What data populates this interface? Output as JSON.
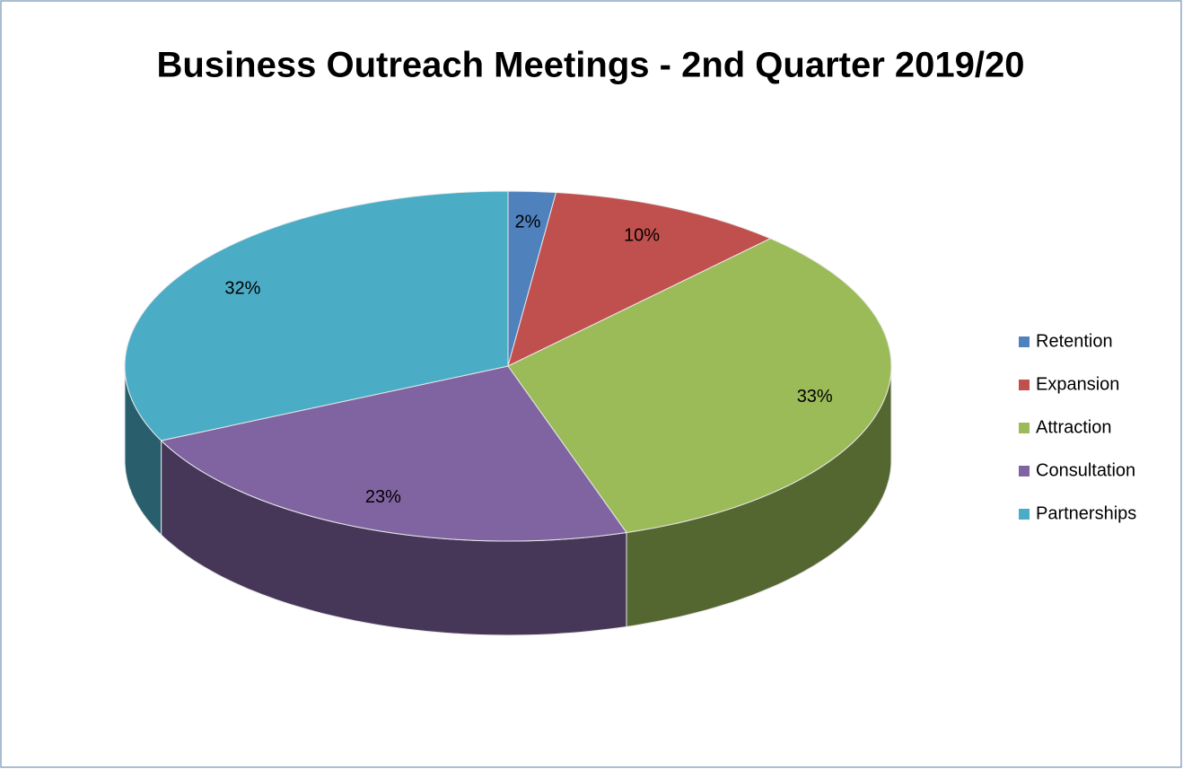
{
  "chart_data": {
    "type": "pie3d",
    "title": "Business Outreach Meetings - 2nd Quarter 2019/20",
    "categories": [
      "Retention",
      "Expansion",
      "Attraction",
      "Consultation",
      "Partnerships"
    ],
    "values": [
      2,
      10,
      33,
      23,
      32
    ],
    "value_labels": [
      "2%",
      "10%",
      "33%",
      "23%",
      "32%"
    ],
    "colors": [
      "#4f81bd",
      "#c0504d",
      "#9bbb59",
      "#8064a2",
      "#4bacc6"
    ],
    "legend": "right"
  }
}
